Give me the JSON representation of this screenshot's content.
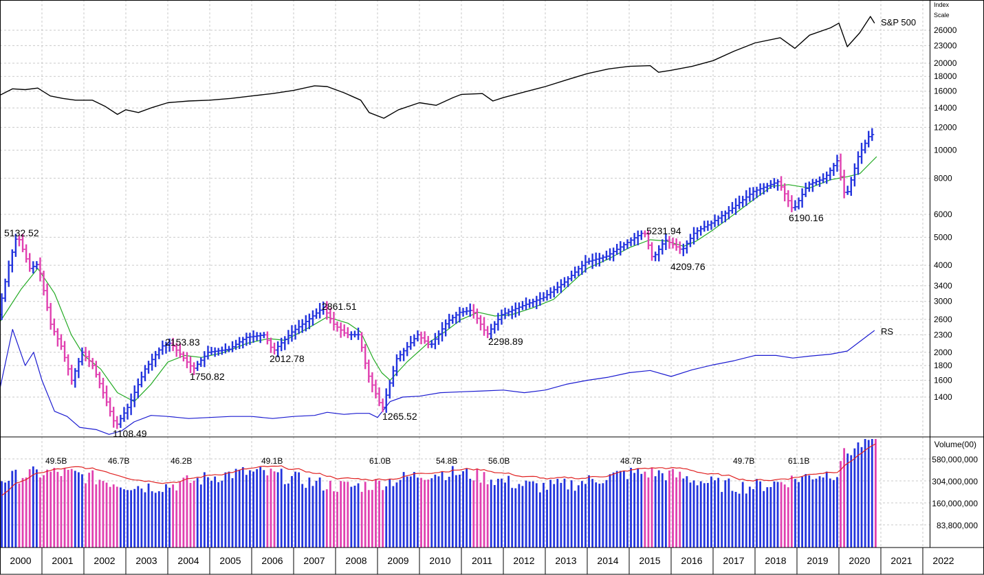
{
  "chart_data": [
    {
      "type": "ohlc",
      "price_axis": {
        "scale": "log",
        "ticks": [
          1400,
          1600,
          1800,
          2000,
          2300,
          2600,
          3000,
          3400,
          4000,
          5000,
          6000,
          8000,
          10000,
          12000,
          14000,
          16000,
          18000,
          20000,
          23000,
          26000
        ]
      },
      "axis_header": [
        "Index",
        "Scale"
      ],
      "years": [
        "2000",
        "2001",
        "2002",
        "2003",
        "2004",
        "2005",
        "2006",
        "2007",
        "2008",
        "2009",
        "2010",
        "2011",
        "2012",
        "2013",
        "2014",
        "2015",
        "2016",
        "2017",
        "2018",
        "2019",
        "2020",
        "2021",
        "2022"
      ],
      "colors": {
        "up_bar": "#2233dd",
        "down_bar": "#e040b0",
        "moving_average": "#22aa22",
        "rs_line": "#1a1ad0",
        "sp500_line": "#000000",
        "volume_average": "#e02020"
      },
      "price_path": [
        [
          2000.0,
          2700
        ],
        [
          2000.25,
          4000
        ],
        [
          2000.45,
          5132.52
        ],
        [
          2000.75,
          3900
        ],
        [
          2000.95,
          4050
        ],
        [
          2001.25,
          2500
        ],
        [
          2001.5,
          2100
        ],
        [
          2001.75,
          1600
        ],
        [
          2002.0,
          2000
        ],
        [
          2002.25,
          1800
        ],
        [
          2002.5,
          1450
        ],
        [
          2002.8,
          1108.49
        ],
        [
          2003.1,
          1300
        ],
        [
          2003.5,
          1750
        ],
        [
          2003.9,
          2100
        ],
        [
          2004.1,
          2153.83
        ],
        [
          2004.5,
          1850
        ],
        [
          2004.65,
          1750.82
        ],
        [
          2005.0,
          2000
        ],
        [
          2005.5,
          2050
        ],
        [
          2005.9,
          2250
        ],
        [
          2006.35,
          2300
        ],
        [
          2006.55,
          2012.78
        ],
        [
          2007.0,
          2350
        ],
        [
          2007.4,
          2600
        ],
        [
          2007.75,
          2861.51
        ],
        [
          2008.0,
          2500
        ],
        [
          2008.3,
          2300
        ],
        [
          2008.6,
          2300
        ],
        [
          2008.8,
          1700
        ],
        [
          2009.15,
          1265.52
        ],
        [
          2009.5,
          1900
        ],
        [
          2010.0,
          2300
        ],
        [
          2010.3,
          2100
        ],
        [
          2010.7,
          2550
        ],
        [
          2011.0,
          2750
        ],
        [
          2011.3,
          2800
        ],
        [
          2011.65,
          2298.89
        ],
        [
          2012.0,
          2700
        ],
        [
          2012.5,
          2900
        ],
        [
          2013.0,
          3100
        ],
        [
          2013.5,
          3500
        ],
        [
          2014.0,
          4100
        ],
        [
          2014.5,
          4300
        ],
        [
          2015.0,
          4800
        ],
        [
          2015.4,
          5231.94
        ],
        [
          2015.6,
          4209.76
        ],
        [
          2015.9,
          4900
        ],
        [
          2016.3,
          4500
        ],
        [
          2016.6,
          5200
        ],
        [
          2017.0,
          5600
        ],
        [
          2017.5,
          6300
        ],
        [
          2018.0,
          7200
        ],
        [
          2018.6,
          7800
        ],
        [
          2018.95,
          6190.16
        ],
        [
          2019.3,
          7600
        ],
        [
          2019.7,
          8000
        ],
        [
          2020.0,
          9200
        ],
        [
          2020.2,
          6800
        ],
        [
          2020.5,
          9500
        ],
        [
          2020.8,
          11500
        ],
        [
          2020.9,
          11000
        ]
      ],
      "moving_average": [
        [
          2000.0,
          2550
        ],
        [
          2000.5,
          3300
        ],
        [
          2000.9,
          3900
        ],
        [
          2001.3,
          3200
        ],
        [
          2001.7,
          2300
        ],
        [
          2002.0,
          1950
        ],
        [
          2002.4,
          1750
        ],
        [
          2002.8,
          1450
        ],
        [
          2003.2,
          1350
        ],
        [
          2003.6,
          1550
        ],
        [
          2004.0,
          1850
        ],
        [
          2004.4,
          1950
        ],
        [
          2004.8,
          1920
        ],
        [
          2005.3,
          1990
        ],
        [
          2005.9,
          2150
        ],
        [
          2006.4,
          2230
        ],
        [
          2006.8,
          2200
        ],
        [
          2007.4,
          2450
        ],
        [
          2007.8,
          2650
        ],
        [
          2008.3,
          2520
        ],
        [
          2008.6,
          2350
        ],
        [
          2008.9,
          1900
        ],
        [
          2009.1,
          1700
        ],
        [
          2009.3,
          1600
        ],
        [
          2009.7,
          1850
        ],
        [
          2010.2,
          2150
        ],
        [
          2010.6,
          2350
        ],
        [
          2011.0,
          2600
        ],
        [
          2011.4,
          2750
        ],
        [
          2011.8,
          2670
        ],
        [
          2012.2,
          2700
        ],
        [
          2012.7,
          2850
        ],
        [
          2013.2,
          3050
        ],
        [
          2013.6,
          3450
        ],
        [
          2014.0,
          3900
        ],
        [
          2014.5,
          4200
        ],
        [
          2015.0,
          4600
        ],
        [
          2015.5,
          4900
        ],
        [
          2015.9,
          4850
        ],
        [
          2016.3,
          4650
        ],
        [
          2016.6,
          4850
        ],
        [
          2017.0,
          5300
        ],
        [
          2017.5,
          6000
        ],
        [
          2018.0,
          6800
        ],
        [
          2018.4,
          7500
        ],
        [
          2018.8,
          7600
        ],
        [
          2019.3,
          7400
        ],
        [
          2019.8,
          7900
        ],
        [
          2020.2,
          8100
        ],
        [
          2020.5,
          8300
        ],
        [
          2020.9,
          9500
        ]
      ],
      "sp500_index": [
        [
          2000.0,
          15500
        ],
        [
          2000.3,
          16300
        ],
        [
          2000.6,
          16200
        ],
        [
          2000.9,
          16400
        ],
        [
          2001.2,
          15400
        ],
        [
          2001.5,
          15100
        ],
        [
          2001.8,
          14900
        ],
        [
          2002.2,
          14900
        ],
        [
          2002.5,
          14200
        ],
        [
          2002.8,
          13300
        ],
        [
          2003.0,
          13800
        ],
        [
          2003.3,
          13500
        ],
        [
          2003.6,
          14000
        ],
        [
          2004.0,
          14600
        ],
        [
          2004.5,
          14800
        ],
        [
          2005.0,
          14900
        ],
        [
          2005.5,
          15100
        ],
        [
          2006.0,
          15400
        ],
        [
          2006.5,
          15700
        ],
        [
          2007.0,
          16100
        ],
        [
          2007.5,
          16700
        ],
        [
          2007.8,
          16600
        ],
        [
          2008.2,
          15800
        ],
        [
          2008.6,
          14900
        ],
        [
          2008.8,
          13500
        ],
        [
          2009.15,
          12900
        ],
        [
          2009.5,
          13800
        ],
        [
          2010.0,
          14600
        ],
        [
          2010.4,
          14300
        ],
        [
          2010.8,
          15200
        ],
        [
          2011.0,
          15600
        ],
        [
          2011.5,
          15700
        ],
        [
          2011.75,
          14800
        ],
        [
          2012.0,
          15200
        ],
        [
          2012.5,
          15900
        ],
        [
          2013.0,
          16600
        ],
        [
          2013.5,
          17500
        ],
        [
          2014.0,
          18400
        ],
        [
          2014.5,
          19100
        ],
        [
          2015.0,
          19500
        ],
        [
          2015.5,
          19600
        ],
        [
          2015.7,
          18600
        ],
        [
          2016.0,
          18900
        ],
        [
          2016.5,
          19500
        ],
        [
          2017.0,
          20400
        ],
        [
          2017.5,
          22000
        ],
        [
          2018.0,
          23500
        ],
        [
          2018.6,
          24500
        ],
        [
          2018.95,
          22500
        ],
        [
          2019.3,
          25000
        ],
        [
          2019.8,
          26500
        ],
        [
          2020.0,
          27500
        ],
        [
          2020.2,
          22800
        ],
        [
          2020.5,
          25500
        ],
        [
          2020.75,
          29000
        ],
        [
          2020.85,
          27500
        ]
      ],
      "rs_line": [
        [
          2000.0,
          1500
        ],
        [
          2000.3,
          2400
        ],
        [
          2000.6,
          1800
        ],
        [
          2000.8,
          2000
        ],
        [
          2001.0,
          1600
        ],
        [
          2001.3,
          1250
        ],
        [
          2001.6,
          1200
        ],
        [
          2001.9,
          1100
        ],
        [
          2002.3,
          1080
        ],
        [
          2002.6,
          1040
        ],
        [
          2002.9,
          1070
        ],
        [
          2003.2,
          1150
        ],
        [
          2003.6,
          1210
        ],
        [
          2004.0,
          1200
        ],
        [
          2004.5,
          1180
        ],
        [
          2005.0,
          1190
        ],
        [
          2005.5,
          1200
        ],
        [
          2006.0,
          1200
        ],
        [
          2006.5,
          1180
        ],
        [
          2007.0,
          1200
        ],
        [
          2007.5,
          1210
        ],
        [
          2007.8,
          1240
        ],
        [
          2008.2,
          1220
        ],
        [
          2008.5,
          1230
        ],
        [
          2008.8,
          1230
        ],
        [
          2009.0,
          1190
        ],
        [
          2009.3,
          1350
        ],
        [
          2009.6,
          1400
        ],
        [
          2010.0,
          1410
        ],
        [
          2010.5,
          1450
        ],
        [
          2011.0,
          1460
        ],
        [
          2011.5,
          1470
        ],
        [
          2012.0,
          1480
        ],
        [
          2012.5,
          1450
        ],
        [
          2013.0,
          1480
        ],
        [
          2013.5,
          1550
        ],
        [
          2014.0,
          1600
        ],
        [
          2014.5,
          1640
        ],
        [
          2015.0,
          1700
        ],
        [
          2015.5,
          1730
        ],
        [
          2016.0,
          1650
        ],
        [
          2016.5,
          1740
        ],
        [
          2017.0,
          1810
        ],
        [
          2017.5,
          1870
        ],
        [
          2018.0,
          1950
        ],
        [
          2018.5,
          1950
        ],
        [
          2018.9,
          1910
        ],
        [
          2019.3,
          1940
        ],
        [
          2019.8,
          1970
        ],
        [
          2020.2,
          2020
        ],
        [
          2020.5,
          2180
        ],
        [
          2020.85,
          2380
        ]
      ],
      "price_labels": [
        "5132.52",
        "1108.49",
        "2153.83",
        "1750.82",
        "2012.78",
        "2861.51",
        "1265.52",
        "2298.89",
        "5231.94",
        "4209.76",
        "6190.16"
      ],
      "series_labels": [
        "S&P 500",
        "RS"
      ]
    },
    {
      "type": "bar",
      "volume_title": "Volume(00)",
      "volume_ticks": [
        "580,000,000",
        "304,000,000",
        "160,000,000",
        "83,800,000"
      ],
      "volume_annotations": [
        "49.5B",
        "46.7B",
        "46.2B",
        "49.1B",
        "61.0B",
        "54.8B",
        "56.0B",
        "48.7B",
        "49.7B",
        "61.1B"
      ]
    }
  ]
}
